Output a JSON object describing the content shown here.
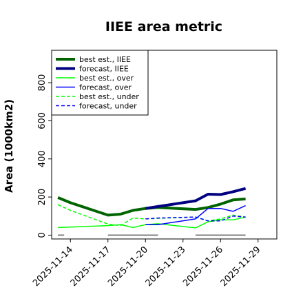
{
  "chart_data": {
    "type": "line",
    "title": "IIEE area metric",
    "ylabel": "Area (1000km2)",
    "xlabel": "",
    "ylim": [
      -20,
      970
    ],
    "y_ticks": [
      0,
      200,
      400,
      600,
      800
    ],
    "x_range": [
      "2025-11-12T12:00",
      "2025-11-30T12:00"
    ],
    "x_ticks": [
      {
        "date": "2025-11-14",
        "label": "2025-11-14",
        "color": "#000000"
      },
      {
        "date": "2025-11-17",
        "label": "2025-11-17",
        "color": "#000000"
      },
      {
        "date": "2025-11-20",
        "label": "2025-11-20",
        "color": "#228b22"
      },
      {
        "date": "2025-11-23",
        "label": "2025-11-23",
        "color": "#000000"
      },
      {
        "date": "2025-11-26",
        "label": "2025-11-26",
        "color": "#000000"
      },
      {
        "date": "2025-11-29",
        "label": "2025-11-29",
        "color": "#000000"
      }
    ],
    "grid": false,
    "legend_position": "top-left",
    "series": [
      {
        "name": "best est., IIEE",
        "color": "#006400",
        "width": 4,
        "dash": "",
        "x": [
          "2025-11-13",
          "2025-11-14",
          "2025-11-17",
          "2025-11-18",
          "2025-11-19",
          "2025-11-20",
          "2025-11-21",
          "2025-11-24",
          "2025-11-25",
          "2025-11-26",
          "2025-11-27",
          "2025-11-28"
        ],
        "y": [
          197,
          170,
          105,
          110,
          130,
          140,
          145,
          135,
          145,
          163,
          185,
          190
        ]
      },
      {
        "name": "forecast, IIEE",
        "color": "#000080",
        "width": 4,
        "dash": "",
        "x": [
          "2025-11-20",
          "2025-11-21",
          "2025-11-24",
          "2025-11-25",
          "2025-11-26",
          "2025-11-27",
          "2025-11-28"
        ],
        "y": [
          140,
          150,
          180,
          215,
          213,
          228,
          245
        ]
      },
      {
        "name": "best est., over",
        "color": "#00ff00",
        "width": 1.5,
        "dash": "",
        "x": [
          "2025-11-13",
          "2025-11-14",
          "2025-11-17",
          "2025-11-18",
          "2025-11-19",
          "2025-11-20",
          "2025-11-21",
          "2025-11-24",
          "2025-11-25",
          "2025-11-26",
          "2025-11-27",
          "2025-11-28"
        ],
        "y": [
          40,
          42,
          50,
          55,
          40,
          55,
          60,
          38,
          70,
          80,
          80,
          95
        ]
      },
      {
        "name": "forecast, over",
        "color": "#0000ff",
        "width": 1.5,
        "dash": "",
        "x": [
          "2025-11-20",
          "2025-11-21",
          "2025-11-24",
          "2025-11-25",
          "2025-11-26",
          "2025-11-27",
          "2025-11-28"
        ],
        "y": [
          55,
          55,
          85,
          140,
          140,
          125,
          155
        ]
      },
      {
        "name": "best est., under",
        "color": "#00ff00",
        "width": 1.5,
        "dash": "5,3",
        "x": [
          "2025-11-13",
          "2025-11-14",
          "2025-11-17",
          "2025-11-18",
          "2025-11-19",
          "2025-11-20",
          "2025-11-21",
          "2025-11-24",
          "2025-11-25",
          "2025-11-26",
          "2025-11-27",
          "2025-11-28"
        ],
        "y": [
          160,
          130,
          58,
          50,
          90,
          85,
          88,
          95,
          75,
          85,
          105,
          95
        ]
      },
      {
        "name": "forecast, under",
        "color": "#0000ff",
        "width": 1.5,
        "dash": "5,3",
        "x": [
          "2025-11-20",
          "2025-11-21",
          "2025-11-24",
          "2025-11-25",
          "2025-11-26",
          "2025-11-27",
          "2025-11-28"
        ],
        "y": [
          85,
          90,
          95,
          75,
          75,
          100,
          95
        ]
      }
    ],
    "gray_segments": [
      {
        "color": "#808080",
        "y": 0,
        "x": [
          "2025-11-13",
          "2025-11-13T12:00"
        ]
      },
      {
        "color": "#808080",
        "y": 0,
        "x": [
          "2025-11-17",
          "2025-11-21"
        ]
      },
      {
        "color": "#808080",
        "y": 0,
        "x": [
          "2025-11-24",
          "2025-11-28"
        ]
      }
    ]
  }
}
